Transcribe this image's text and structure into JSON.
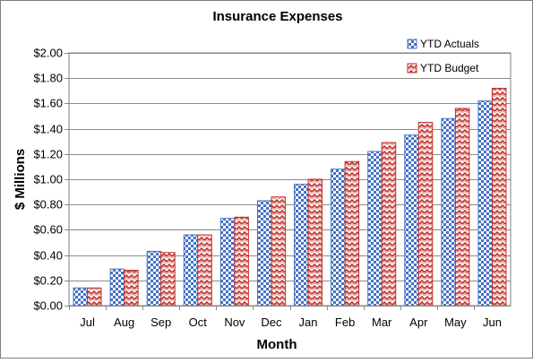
{
  "chart_data": {
    "type": "bar",
    "title": "Insurance Expenses",
    "xlabel": "Month",
    "ylabel": "$ Millions",
    "categories": [
      "Jul",
      "Aug",
      "Sep",
      "Oct",
      "Nov",
      "Dec",
      "Jan",
      "Feb",
      "Mar",
      "Apr",
      "May",
      "Jun"
    ],
    "series": [
      {
        "name": "YTD Actuals",
        "color": "#4472c4",
        "pattern": "checkerboard",
        "values": [
          0.14,
          0.29,
          0.43,
          0.56,
          0.69,
          0.83,
          0.96,
          1.08,
          1.22,
          1.35,
          1.48,
          1.62
        ]
      },
      {
        "name": "YTD Budget",
        "color": "#c0302c",
        "pattern": "zigzag",
        "values": [
          0.14,
          0.28,
          0.42,
          0.56,
          0.7,
          0.86,
          1.0,
          1.14,
          1.29,
          1.45,
          1.56,
          1.72
        ]
      }
    ],
    "ylim": [
      0,
      2
    ],
    "ytick_labels": [
      "$0.00",
      "$0.20",
      "$0.40",
      "$0.60",
      "$0.80",
      "$1.00",
      "$1.20",
      "$1.40",
      "$1.60",
      "$1.80",
      "$2.00"
    ],
    "grid": true,
    "legend_position": "top-right"
  }
}
